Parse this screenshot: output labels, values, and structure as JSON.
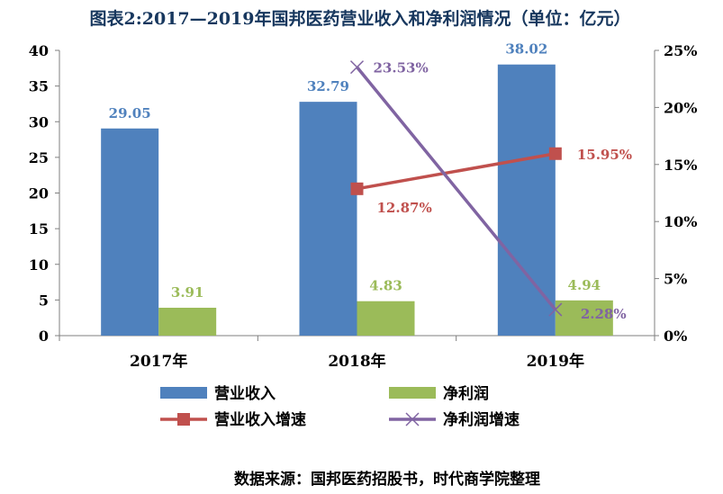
{
  "chart_data": {
    "type": "bar",
    "title": "图表2:2017—2019年国邦医药营业收入和净利润情况（单位：亿元）",
    "categories": [
      "2017年",
      "2018年",
      "2019年"
    ],
    "bar_series": [
      {
        "name": "营业收入",
        "values": [
          29.05,
          32.79,
          38.02
        ],
        "labels": [
          "29.05",
          "32.79",
          "38.02"
        ],
        "color": "#4f81bd"
      },
      {
        "name": "净利润",
        "values": [
          3.91,
          4.83,
          4.94
        ],
        "labels": [
          "3.91",
          "4.83",
          "4.94"
        ],
        "color": "#9bbb59"
      }
    ],
    "line_series": [
      {
        "name": "营业收入增速",
        "values": [
          null,
          12.87,
          15.95
        ],
        "labels": [
          "",
          "12.87%",
          "15.95%"
        ],
        "color": "#c0504d",
        "marker": "square"
      },
      {
        "name": "净利润增速",
        "values": [
          null,
          23.53,
          2.28
        ],
        "labels": [
          "",
          "23.53%",
          "2.28%"
        ],
        "color": "#8064a2",
        "marker": "x"
      }
    ],
    "y_left": {
      "min": 0,
      "max": 40,
      "ticks": [
        "0",
        "5",
        "10",
        "15",
        "20",
        "25",
        "30",
        "35",
        "40"
      ]
    },
    "y_right": {
      "min": 0,
      "max": 25,
      "ticks": [
        "0%",
        "5%",
        "10%",
        "15%",
        "20%",
        "25%"
      ]
    },
    "legend_position": "bottom",
    "grid": false
  },
  "source": "数据来源：国邦医药招股书，时代商学院整理"
}
